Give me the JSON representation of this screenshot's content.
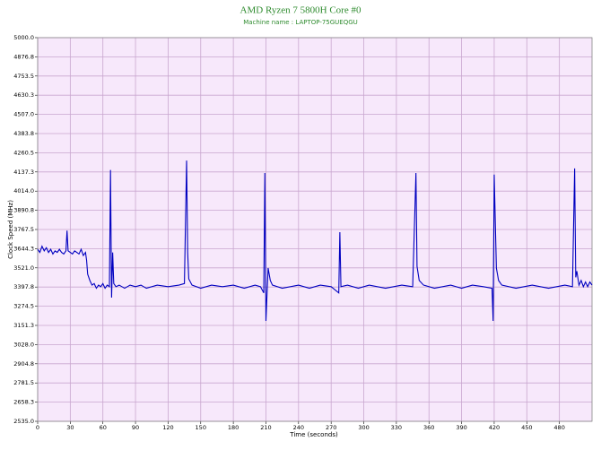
{
  "chart_data": {
    "type": "line",
    "title": "AMD Ryzen 7 5800H Core #0",
    "subtitle": "Machine name : LAPTOP-75GUEQGU",
    "x_label": "Time (seconds)",
    "y_label": "Clock Speed (MHz)",
    "color": "#0000c0",
    "grid": true,
    "xlim": [
      0,
      510
    ],
    "xticks": [
      0,
      30,
      60,
      90,
      120,
      150,
      180,
      210,
      240,
      270,
      300,
      330,
      360,
      390,
      420,
      450,
      480
    ],
    "ylim": [
      2535,
      5000
    ],
    "yticks": [
      {
        "value": 2535,
        "label": "2535.0"
      },
      {
        "value": 2658.25,
        "label": "2658.3"
      },
      {
        "value": 2781.5,
        "label": "2781.5"
      },
      {
        "value": 2904.75,
        "label": "2904.8"
      },
      {
        "value": 3028,
        "label": "3028.0"
      },
      {
        "value": 3151.25,
        "label": "3151.3"
      },
      {
        "value": 3274.5,
        "label": "3274.5"
      },
      {
        "value": 3397.75,
        "label": "3397.8"
      },
      {
        "value": 3521,
        "label": "3521.0"
      },
      {
        "value": 3644.25,
        "label": "3644.3"
      },
      {
        "value": 3767.5,
        "label": "3767.5"
      },
      {
        "value": 3890.75,
        "label": "3890.8"
      },
      {
        "value": 4014,
        "label": "4014.0"
      },
      {
        "value": 4137.25,
        "label": "4137.3"
      },
      {
        "value": 4260.5,
        "label": "4260.5"
      },
      {
        "value": 4383.75,
        "label": "4383.8"
      },
      {
        "value": 4507,
        "label": "4507.0"
      },
      {
        "value": 4630.25,
        "label": "4630.3"
      },
      {
        "value": 4753.5,
        "label": "4753.5"
      },
      {
        "value": 4876.75,
        "label": "4876.8"
      },
      {
        "value": 5000,
        "label": "5000.0"
      }
    ],
    "x": [
      0,
      2,
      4,
      6,
      8,
      10,
      12,
      14,
      16,
      18,
      20,
      22,
      24,
      26,
      27,
      28,
      30,
      32,
      34,
      36,
      38,
      40,
      42,
      44,
      45,
      46,
      48,
      50,
      52,
      54,
      56,
      58,
      60,
      62,
      64,
      66,
      67,
      68,
      69,
      70,
      72,
      75,
      80,
      85,
      90,
      95,
      100,
      110,
      120,
      130,
      135,
      137,
      138,
      139,
      142,
      150,
      160,
      170,
      180,
      190,
      200,
      205,
      208,
      209,
      210,
      212,
      214,
      216,
      225,
      240,
      250,
      260,
      270,
      277,
      278,
      279,
      285,
      295,
      305,
      320,
      335,
      345,
      348,
      349,
      351,
      355,
      365,
      380,
      390,
      400,
      410,
      418,
      419,
      420,
      422,
      424,
      427,
      440,
      455,
      470,
      485,
      492,
      494,
      495,
      496,
      498,
      500,
      502,
      504,
      506,
      508,
      510
    ],
    "values": [
      3640,
      3620,
      3660,
      3630,
      3650,
      3620,
      3640,
      3610,
      3630,
      3620,
      3640,
      3620,
      3610,
      3630,
      3760,
      3630,
      3620,
      3610,
      3630,
      3620,
      3610,
      3640,
      3600,
      3620,
      3570,
      3480,
      3440,
      3410,
      3420,
      3390,
      3410,
      3400,
      3420,
      3390,
      3410,
      3400,
      4150,
      3330,
      3620,
      3420,
      3400,
      3410,
      3390,
      3410,
      3400,
      3410,
      3390,
      3410,
      3400,
      3410,
      3420,
      4210,
      3620,
      3450,
      3410,
      3390,
      3410,
      3400,
      3410,
      3390,
      3410,
      3400,
      3360,
      4130,
      3180,
      3520,
      3440,
      3410,
      3390,
      3410,
      3390,
      3410,
      3400,
      3360,
      3750,
      3400,
      3410,
      3390,
      3410,
      3390,
      3410,
      3400,
      4130,
      3530,
      3440,
      3410,
      3390,
      3410,
      3390,
      3410,
      3400,
      3390,
      3180,
      4120,
      3520,
      3440,
      3410,
      3390,
      3410,
      3390,
      3410,
      3400,
      4160,
      3460,
      3500,
      3410,
      3440,
      3400,
      3430,
      3400,
      3430,
      3410
    ]
  }
}
